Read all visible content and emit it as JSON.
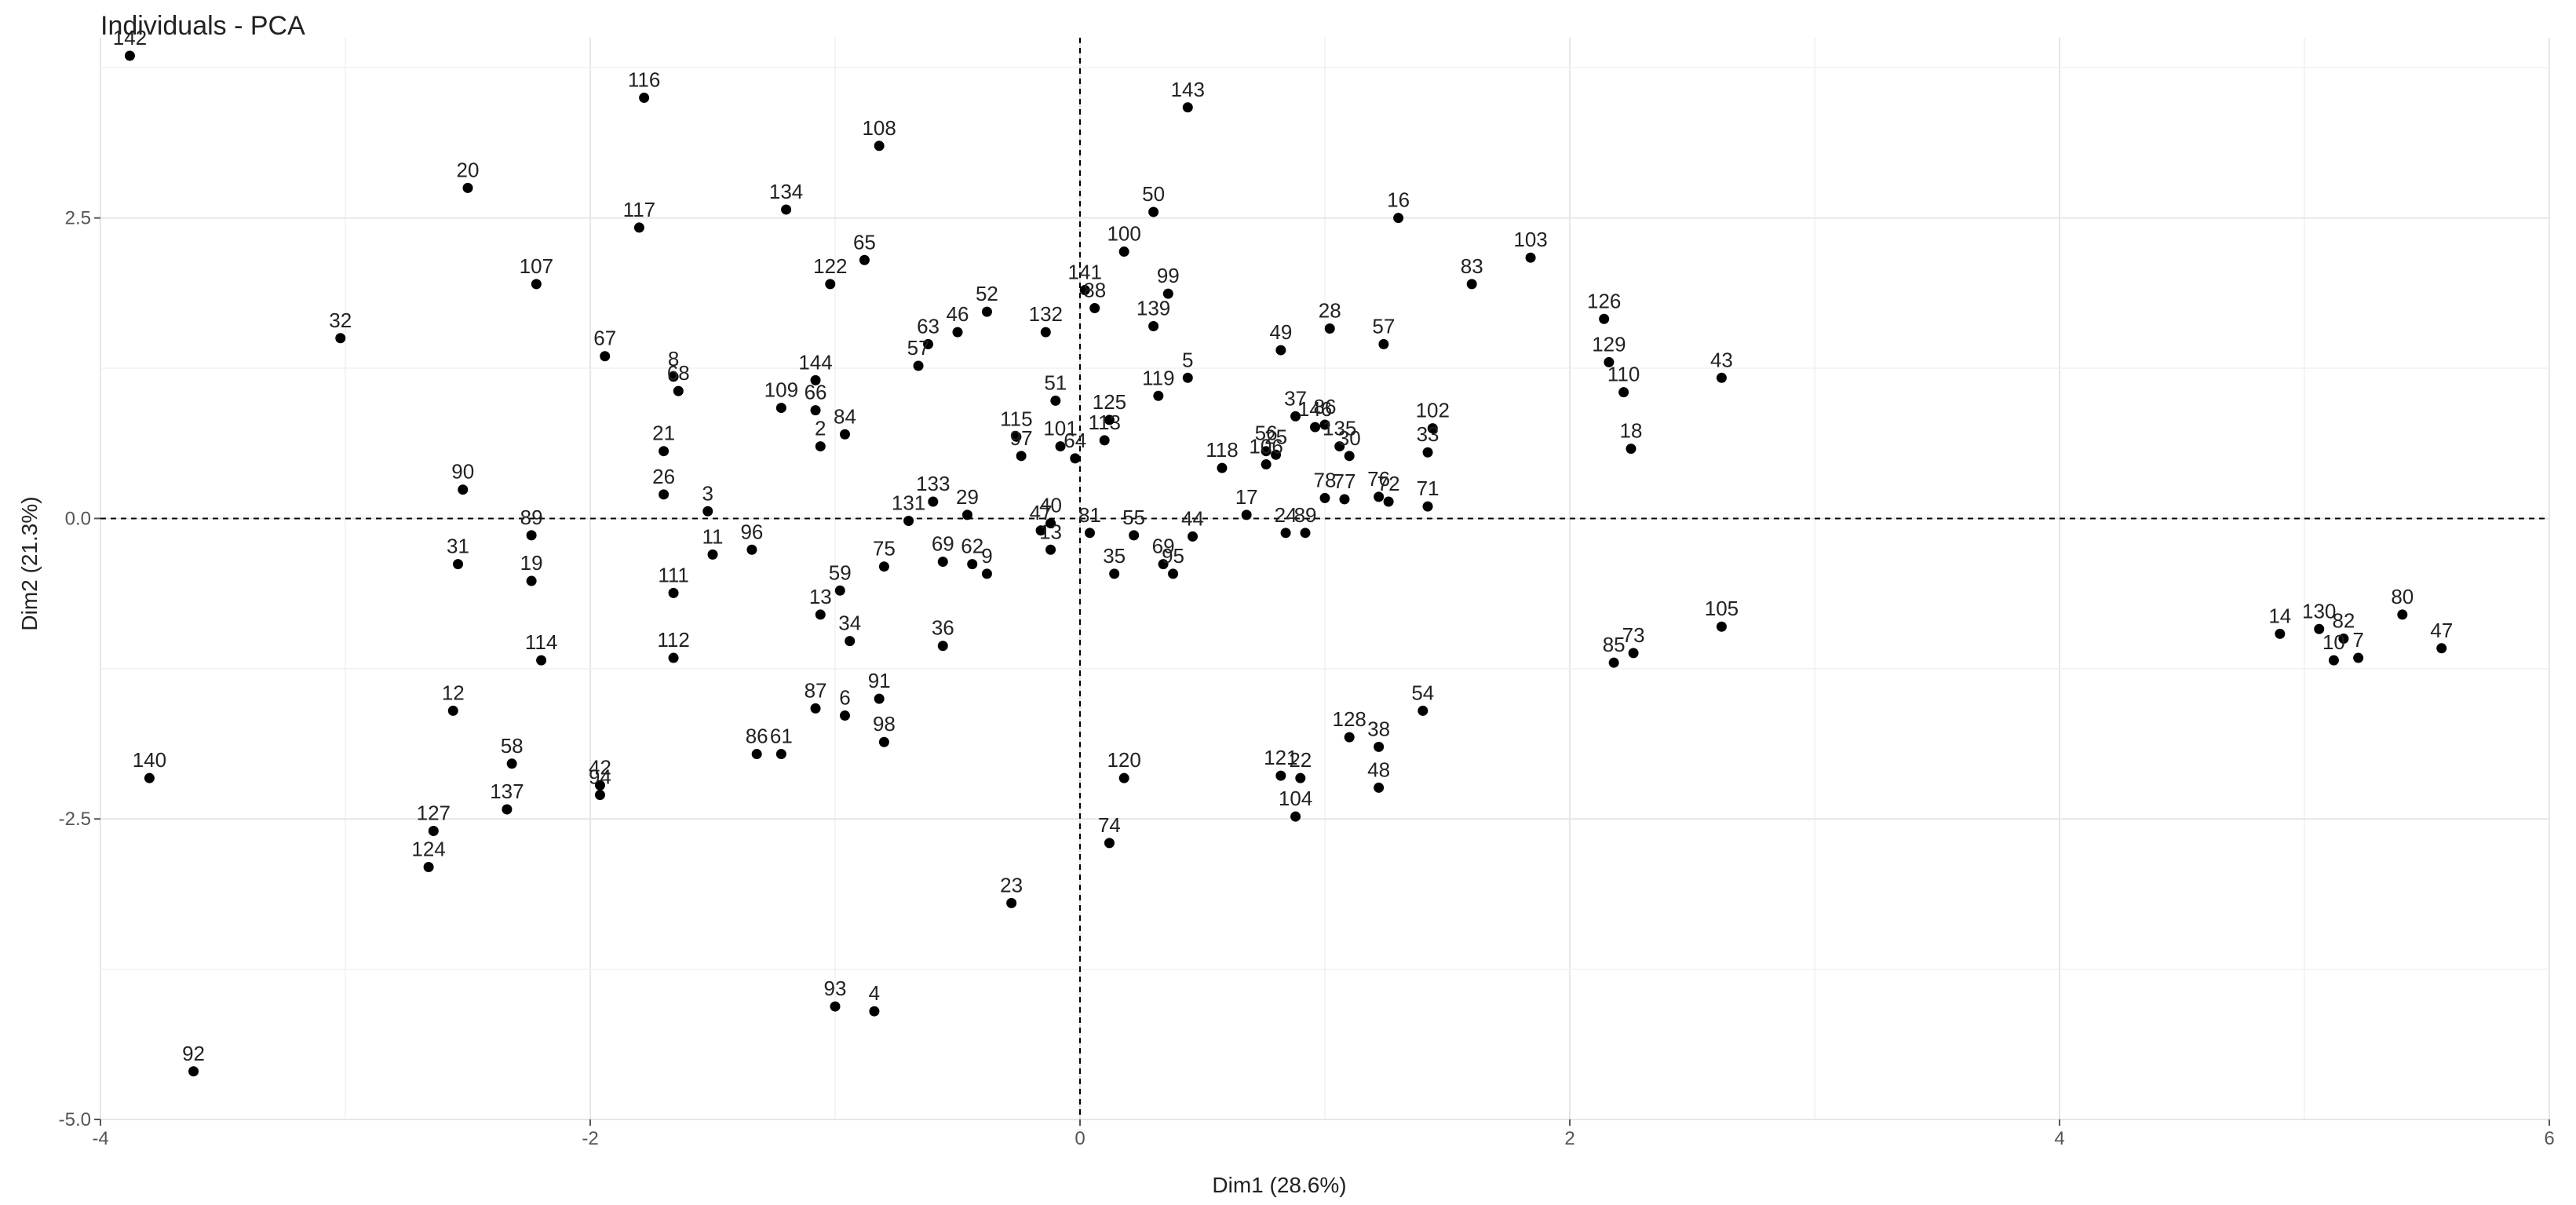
{
  "chart_data": {
    "type": "scatter",
    "title": "Individuals - PCA",
    "xlabel": "Dim1 (28.6%)",
    "ylabel": "Dim2 (21.3%)",
    "xlim": [
      -4.0,
      6.0
    ],
    "ylim": [
      -5.0,
      4.0
    ],
    "x_ticks": [
      -4,
      -2,
      0,
      2,
      4,
      6
    ],
    "y_ticks": [
      -5.0,
      -2.5,
      0.0,
      2.5
    ],
    "x_tick_labels": [
      "-4",
      "-2",
      "0",
      "2",
      "4",
      "6"
    ],
    "y_tick_labels": [
      "-5.0",
      "-2.5",
      "0.0",
      "2.5"
    ],
    "grid": true,
    "reference_lines": {
      "x": 0,
      "y": 0,
      "style": "dashed"
    },
    "point_color": "#000000",
    "points": [
      {
        "label": "142",
        "x": -3.88,
        "y": 3.85
      },
      {
        "label": "116",
        "x": -1.78,
        "y": 3.5
      },
      {
        "label": "108",
        "x": -0.82,
        "y": 3.1
      },
      {
        "label": "143",
        "x": 0.44,
        "y": 3.42
      },
      {
        "label": "20",
        "x": -2.5,
        "y": 2.75
      },
      {
        "label": "134",
        "x": -1.2,
        "y": 2.57
      },
      {
        "label": "117",
        "x": -1.8,
        "y": 2.42
      },
      {
        "label": "65",
        "x": -0.88,
        "y": 2.15
      },
      {
        "label": "50",
        "x": 0.3,
        "y": 2.55
      },
      {
        "label": "16",
        "x": 1.3,
        "y": 2.5
      },
      {
        "label": "103",
        "x": 1.84,
        "y": 2.17
      },
      {
        "label": "107",
        "x": -2.22,
        "y": 1.95
      },
      {
        "label": "122",
        "x": -1.02,
        "y": 1.95
      },
      {
        "label": "100",
        "x": 0.18,
        "y": 2.22
      },
      {
        "label": "141",
        "x": 0.02,
        "y": 1.9
      },
      {
        "label": "88",
        "x": 0.06,
        "y": 1.75
      },
      {
        "label": "99",
        "x": 0.36,
        "y": 1.87
      },
      {
        "label": "83",
        "x": 1.6,
        "y": 1.95
      },
      {
        "label": "32",
        "x": -3.02,
        "y": 1.5
      },
      {
        "label": "63",
        "x": -0.62,
        "y": 1.45
      },
      {
        "label": "46",
        "x": -0.5,
        "y": 1.55
      },
      {
        "label": "52",
        "x": -0.38,
        "y": 1.72
      },
      {
        "label": "132",
        "x": -0.14,
        "y": 1.55
      },
      {
        "label": "139",
        "x": 0.3,
        "y": 1.6
      },
      {
        "label": "28",
        "x": 1.02,
        "y": 1.58
      },
      {
        "label": "57",
        "x": 1.24,
        "y": 1.45
      },
      {
        "label": "126",
        "x": 2.14,
        "y": 1.66
      },
      {
        "label": "49",
        "x": 0.82,
        "y": 1.4
      },
      {
        "label": "67",
        "x": -1.94,
        "y": 1.35
      },
      {
        "label": "57",
        "x": -0.66,
        "y": 1.27
      },
      {
        "label": "144",
        "x": -1.08,
        "y": 1.15
      },
      {
        "label": "8",
        "x": -1.66,
        "y": 1.18
      },
      {
        "label": "68",
        "x": -1.64,
        "y": 1.06
      },
      {
        "label": "5",
        "x": 0.44,
        "y": 1.17
      },
      {
        "label": "129",
        "x": 2.16,
        "y": 1.3
      },
      {
        "label": "43",
        "x": 2.62,
        "y": 1.17
      },
      {
        "label": "119",
        "x": 0.32,
        "y": 1.02
      },
      {
        "label": "110",
        "x": 2.22,
        "y": 1.05
      },
      {
        "label": "51",
        "x": -0.1,
        "y": 0.98
      },
      {
        "label": "109",
        "x": -1.22,
        "y": 0.92
      },
      {
        "label": "66",
        "x": -1.08,
        "y": 0.9
      },
      {
        "label": "84",
        "x": -0.96,
        "y": 0.7
      },
      {
        "label": "2",
        "x": -1.06,
        "y": 0.6
      },
      {
        "label": "125",
        "x": 0.12,
        "y": 0.82
      },
      {
        "label": "115",
        "x": -0.26,
        "y": 0.68
      },
      {
        "label": "97",
        "x": -0.24,
        "y": 0.52
      },
      {
        "label": "101",
        "x": -0.08,
        "y": 0.6
      },
      {
        "label": "113",
        "x": 0.1,
        "y": 0.65
      },
      {
        "label": "64",
        "x": -0.02,
        "y": 0.5
      },
      {
        "label": "37",
        "x": 0.88,
        "y": 0.85
      },
      {
        "label": "146",
        "x": 0.96,
        "y": 0.76
      },
      {
        "label": "86",
        "x": 1.0,
        "y": 0.78
      },
      {
        "label": "102",
        "x": 1.44,
        "y": 0.75
      },
      {
        "label": "18",
        "x": 2.25,
        "y": 0.58
      },
      {
        "label": "21",
        "x": -1.7,
        "y": 0.56
      },
      {
        "label": "135",
        "x": 1.06,
        "y": 0.6
      },
      {
        "label": "30",
        "x": 1.1,
        "y": 0.52
      },
      {
        "label": "33",
        "x": 1.42,
        "y": 0.55
      },
      {
        "label": "118",
        "x": 0.58,
        "y": 0.42
      },
      {
        "label": "56",
        "x": 0.76,
        "y": 0.56
      },
      {
        "label": "25",
        "x": 0.8,
        "y": 0.53
      },
      {
        "label": "106",
        "x": 0.76,
        "y": 0.45
      },
      {
        "label": "90",
        "x": -2.52,
        "y": 0.24
      },
      {
        "label": "26",
        "x": -1.7,
        "y": 0.2
      },
      {
        "label": "3",
        "x": -1.52,
        "y": 0.06
      },
      {
        "label": "133",
        "x": -0.6,
        "y": 0.14
      },
      {
        "label": "29",
        "x": -0.46,
        "y": 0.03
      },
      {
        "label": "71",
        "x": 1.42,
        "y": 0.1
      },
      {
        "label": "78",
        "x": 1.0,
        "y": 0.17
      },
      {
        "label": "77",
        "x": 1.08,
        "y": 0.16
      },
      {
        "label": "76",
        "x": 1.22,
        "y": 0.18
      },
      {
        "label": "72",
        "x": 1.26,
        "y": 0.14
      },
      {
        "label": "17",
        "x": 0.68,
        "y": 0.03
      },
      {
        "label": "40",
        "x": -0.12,
        "y": -0.04
      },
      {
        "label": "47",
        "x": -0.16,
        "y": -0.1
      },
      {
        "label": "131",
        "x": -0.7,
        "y": -0.02
      },
      {
        "label": "81",
        "x": 0.04,
        "y": -0.12
      },
      {
        "label": "55",
        "x": 0.22,
        "y": -0.14
      },
      {
        "label": "44",
        "x": 0.46,
        "y": -0.15
      },
      {
        "label": "24",
        "x": 0.84,
        "y": -0.12
      },
      {
        "label": "89",
        "x": 0.92,
        "y": -0.12
      },
      {
        "label": "89",
        "x": -2.24,
        "y": -0.14
      },
      {
        "label": "96",
        "x": -1.34,
        "y": -0.26
      },
      {
        "label": "11",
        "x": -1.5,
        "y": -0.3
      },
      {
        "label": "31",
        "x": -2.54,
        "y": -0.38
      },
      {
        "label": "19",
        "x": -2.24,
        "y": -0.52
      },
      {
        "label": "13",
        "x": -0.12,
        "y": -0.26
      },
      {
        "label": "35",
        "x": 0.14,
        "y": -0.46
      },
      {
        "label": "69",
        "x": 0.34,
        "y": -0.38
      },
      {
        "label": "95",
        "x": 0.38,
        "y": -0.46
      },
      {
        "label": "75",
        "x": -0.8,
        "y": -0.4
      },
      {
        "label": "69",
        "x": -0.56,
        "y": -0.36
      },
      {
        "label": "62",
        "x": -0.44,
        "y": -0.38
      },
      {
        "label": "9",
        "x": -0.38,
        "y": -0.46
      },
      {
        "label": "111",
        "x": -1.66,
        "y": -0.62
      },
      {
        "label": "59",
        "x": -0.98,
        "y": -0.6
      },
      {
        "label": "13",
        "x": -1.06,
        "y": -0.8
      },
      {
        "label": "34",
        "x": -0.94,
        "y": -1.02
      },
      {
        "label": "36",
        "x": -0.56,
        "y": -1.06
      },
      {
        "label": "114",
        "x": -2.2,
        "y": -1.18
      },
      {
        "label": "112",
        "x": -1.66,
        "y": -1.16
      },
      {
        "label": "105",
        "x": 2.62,
        "y": -0.9
      },
      {
        "label": "73",
        "x": 2.26,
        "y": -1.12
      },
      {
        "label": "85",
        "x": 2.18,
        "y": -1.2
      },
      {
        "label": "12",
        "x": -2.56,
        "y": -1.6
      },
      {
        "label": "87",
        "x": -1.08,
        "y": -1.58
      },
      {
        "label": "6",
        "x": -0.96,
        "y": -1.64
      },
      {
        "label": "91",
        "x": -0.82,
        "y": -1.5
      },
      {
        "label": "98",
        "x": -0.8,
        "y": -1.86
      },
      {
        "label": "86",
        "x": -1.32,
        "y": -1.96
      },
      {
        "label": "61",
        "x": -1.22,
        "y": -1.96
      },
      {
        "label": "54",
        "x": 1.4,
        "y": -1.6
      },
      {
        "label": "128",
        "x": 1.1,
        "y": -1.82
      },
      {
        "label": "38",
        "x": 1.22,
        "y": -1.9
      },
      {
        "label": "48",
        "x": 1.22,
        "y": -2.24
      },
      {
        "label": "121",
        "x": 0.82,
        "y": -2.14
      },
      {
        "label": "22",
        "x": 0.9,
        "y": -2.16
      },
      {
        "label": "104",
        "x": 0.88,
        "y": -2.48
      },
      {
        "label": "120",
        "x": 0.18,
        "y": -2.16
      },
      {
        "label": "74",
        "x": 0.12,
        "y": -2.7
      },
      {
        "label": "140",
        "x": -3.8,
        "y": -2.16
      },
      {
        "label": "58",
        "x": -2.32,
        "y": -2.04
      },
      {
        "label": "42",
        "x": -1.96,
        "y": -2.22
      },
      {
        "label": "94",
        "x": -1.96,
        "y": -2.3
      },
      {
        "label": "137",
        "x": -2.34,
        "y": -2.42
      },
      {
        "label": "127",
        "x": -2.64,
        "y": -2.6
      },
      {
        "label": "124",
        "x": -2.66,
        "y": -2.9
      },
      {
        "label": "23",
        "x": -0.28,
        "y": -3.2
      },
      {
        "label": "93",
        "x": -1.0,
        "y": -4.06
      },
      {
        "label": "4",
        "x": -0.84,
        "y": -4.1
      },
      {
        "label": "92",
        "x": -3.62,
        "y": -4.6
      },
      {
        "label": "14",
        "x": 4.9,
        "y": -0.96
      },
      {
        "label": "130",
        "x": 5.06,
        "y": -0.92
      },
      {
        "label": "82",
        "x": 5.16,
        "y": -1.0
      },
      {
        "label": "10",
        "x": 5.12,
        "y": -1.18
      },
      {
        "label": "7",
        "x": 5.22,
        "y": -1.16
      },
      {
        "label": "80",
        "x": 5.4,
        "y": -0.8
      },
      {
        "label": "47",
        "x": 5.56,
        "y": -1.08
      }
    ]
  }
}
